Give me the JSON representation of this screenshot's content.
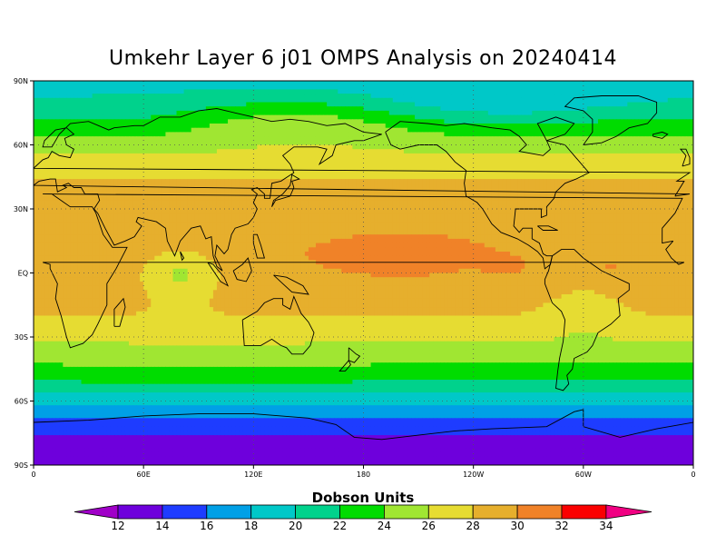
{
  "title": "Umkehr Layer 6 j01 OMPS Analysis on 20240414",
  "lat_labels": [
    "90N",
    "60N",
    "30N",
    "EQ",
    "30S",
    "60S",
    "90S"
  ],
  "lon_labels": [
    "0",
    "60E",
    "120E",
    "180",
    "120W",
    "60W",
    "0"
  ],
  "colorbar": {
    "title": "Dobson Units",
    "ticks": [
      "12",
      "14",
      "16",
      "18",
      "20",
      "22",
      "24",
      "26",
      "28",
      "30",
      "32",
      "34"
    ],
    "colors": [
      "#a000c8",
      "#6e00dc",
      "#1e3cff",
      "#00a0e6",
      "#00c8c8",
      "#00d28c",
      "#00dc00",
      "#a0e632",
      "#e6dc32",
      "#e6af2d",
      "#f08228",
      "#fa0000",
      "#f00082"
    ]
  },
  "chart_data": {
    "type": "heatmap",
    "title": "Umkehr Layer 6 j01 OMPS Analysis on 20240414",
    "units": "Dobson Units",
    "levels": [
      12,
      14,
      16,
      18,
      20,
      22,
      24,
      26,
      28,
      30,
      32,
      34
    ],
    "lon_range": [
      0,
      360
    ],
    "lat_range": [
      -90,
      90
    ],
    "zonal_profile": {
      "lat": [
        90,
        80,
        70,
        60,
        50,
        40,
        30,
        20,
        10,
        0,
        -10,
        -20,
        -30,
        -40,
        -50,
        -60,
        -70,
        -80,
        -90
      ],
      "value": [
        19,
        21,
        23.5,
        25.5,
        27,
        28.5,
        29.5,
        29.8,
        29.5,
        29,
        28.8,
        28,
        26.5,
        24.5,
        22,
        18.5,
        15,
        13,
        12
      ]
    }
  }
}
